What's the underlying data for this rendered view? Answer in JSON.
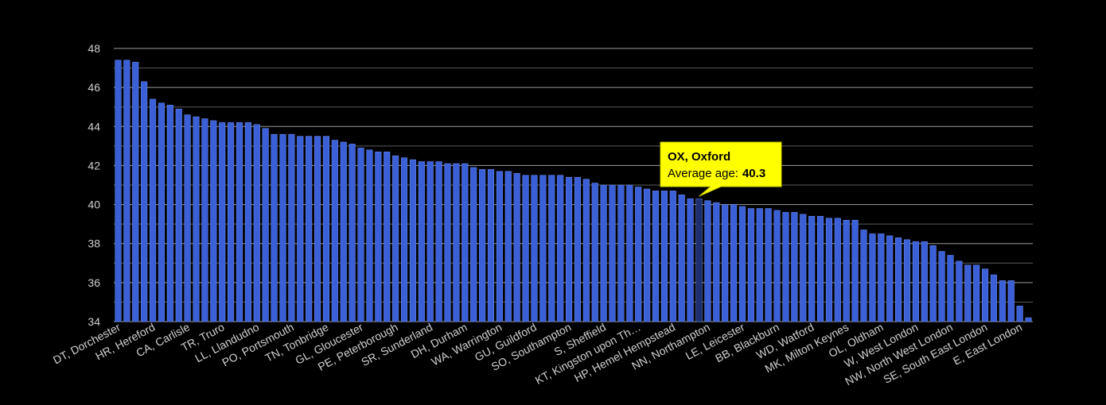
{
  "chart_data": {
    "type": "bar",
    "categories": [
      "DT, Dorchester",
      null,
      null,
      null,
      "HR, Hereford",
      null,
      null,
      null,
      "CA, Carlisle",
      null,
      null,
      null,
      "TR, Truro",
      null,
      null,
      null,
      "LL, Llandudno",
      null,
      null,
      null,
      "PO, Portsmouth",
      null,
      null,
      null,
      "TN, Tonbridge",
      null,
      null,
      null,
      "GL, Gloucester",
      null,
      null,
      null,
      "PE, Peterborough",
      null,
      null,
      null,
      "SR, Sunderland",
      null,
      null,
      null,
      "DH, Durham",
      null,
      null,
      null,
      "WA, Warrington",
      null,
      null,
      null,
      "GU, Guildford",
      null,
      null,
      null,
      "SO, Southampton",
      null,
      null,
      null,
      "S, Sheffield",
      null,
      null,
      null,
      "KT, Kingston upon Th…",
      null,
      null,
      null,
      "HP, Hemel Hempstead",
      null,
      null,
      null,
      "NN, Northampton",
      null,
      null,
      null,
      "LE, Leicester",
      null,
      null,
      null,
      "BB, Blackburn",
      null,
      null,
      null,
      "WD, Watford",
      null,
      null,
      null,
      "MK, Milton Keynes",
      null,
      null,
      null,
      "OL, Oldham",
      null,
      null,
      null,
      "W, West London",
      null,
      null,
      null,
      "NW, North West London",
      null,
      null,
      null,
      "SE, South East London",
      null,
      null,
      null,
      "E, East London",
      null
    ],
    "values": [
      47.4,
      47.4,
      47.3,
      46.3,
      45.4,
      45.2,
      45.1,
      44.9,
      44.6,
      44.5,
      44.4,
      44.3,
      44.2,
      44.2,
      44.2,
      44.2,
      44.1,
      43.9,
      43.6,
      43.6,
      43.6,
      43.5,
      43.5,
      43.5,
      43.5,
      43.3,
      43.2,
      43.1,
      42.9,
      42.8,
      42.7,
      42.7,
      42.5,
      42.4,
      42.3,
      42.2,
      42.2,
      42.2,
      42.1,
      42.1,
      42.1,
      41.9,
      41.8,
      41.8,
      41.7,
      41.7,
      41.6,
      41.5,
      41.5,
      41.5,
      41.5,
      41.5,
      41.4,
      41.4,
      41.3,
      41.1,
      41.0,
      41.0,
      41.0,
      41.0,
      40.9,
      40.8,
      40.7,
      40.7,
      40.7,
      40.5,
      40.3,
      40.3,
      40.2,
      40.1,
      40.0,
      40.0,
      39.9,
      39.8,
      39.8,
      39.8,
      39.7,
      39.6,
      39.6,
      39.5,
      39.4,
      39.4,
      39.3,
      39.3,
      39.2,
      39.2,
      38.7,
      38.5,
      38.5,
      38.4,
      38.3,
      38.2,
      38.1,
      38.1,
      37.9,
      37.6,
      37.4,
      37.1,
      36.9,
      36.9,
      36.7,
      36.4,
      36.1,
      36.1,
      34.8,
      34.2
    ],
    "color": "#3b5fd6",
    "highlight_color": "#1d2f6e",
    "ylim": [
      34,
      48
    ],
    "yticks": [
      34,
      36,
      38,
      40,
      42,
      44,
      46,
      48
    ],
    "minor_yticks": [
      35,
      37,
      39,
      41,
      43,
      45,
      47
    ],
    "grid": true,
    "tooltip": {
      "index": 67,
      "title": "OX, Oxford",
      "label": "Average age:",
      "value": 40.3
    }
  }
}
